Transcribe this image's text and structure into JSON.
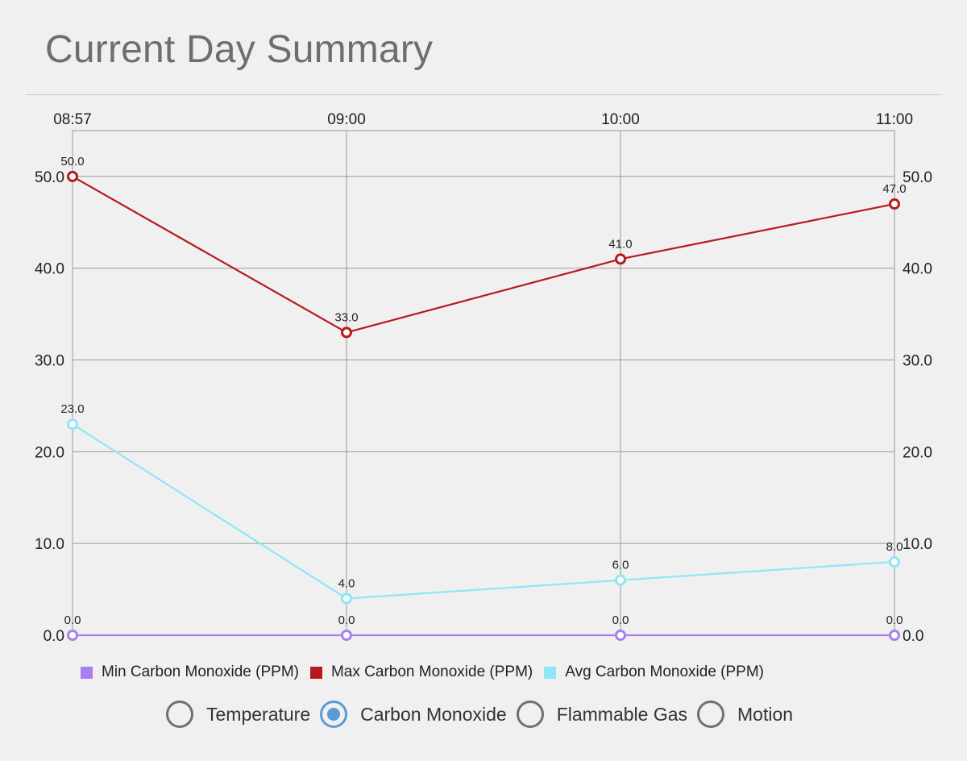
{
  "header": {
    "title": "Current Day Summary"
  },
  "chart_data": {
    "type": "line",
    "x": [
      "08:57",
      "09:00",
      "10:00",
      "11:00"
    ],
    "ylim": [
      0,
      55
    ],
    "yticks": [
      "0.0",
      "10.0",
      "20.0",
      "30.0",
      "40.0",
      "50.0"
    ],
    "grid": true,
    "legend_position": "bottom",
    "series": [
      {
        "name": "Min Carbon Monoxide (PPM)",
        "color": "#a97ff0",
        "values": [
          0,
          0,
          0,
          0
        ],
        "labels": [
          "0.0",
          "0.0",
          "0.0",
          "0.0"
        ]
      },
      {
        "name": "Max Carbon Monoxide (PPM)",
        "color": "#b8191f",
        "values": [
          50,
          33,
          41,
          47
        ],
        "labels": [
          "50.0",
          "33.0",
          "41.0",
          "47.0"
        ]
      },
      {
        "name": "Avg Carbon Monoxide (PPM)",
        "color": "#8ee6f7",
        "values": [
          23,
          4,
          6,
          8
        ],
        "labels": [
          "23.0",
          "4.0",
          "6.0",
          "8.0"
        ]
      }
    ]
  },
  "selector": {
    "selected": 1,
    "options": [
      {
        "label": "Temperature"
      },
      {
        "label": "Carbon Monoxide"
      },
      {
        "label": "Flammable Gas"
      },
      {
        "label": "Motion"
      }
    ]
  }
}
